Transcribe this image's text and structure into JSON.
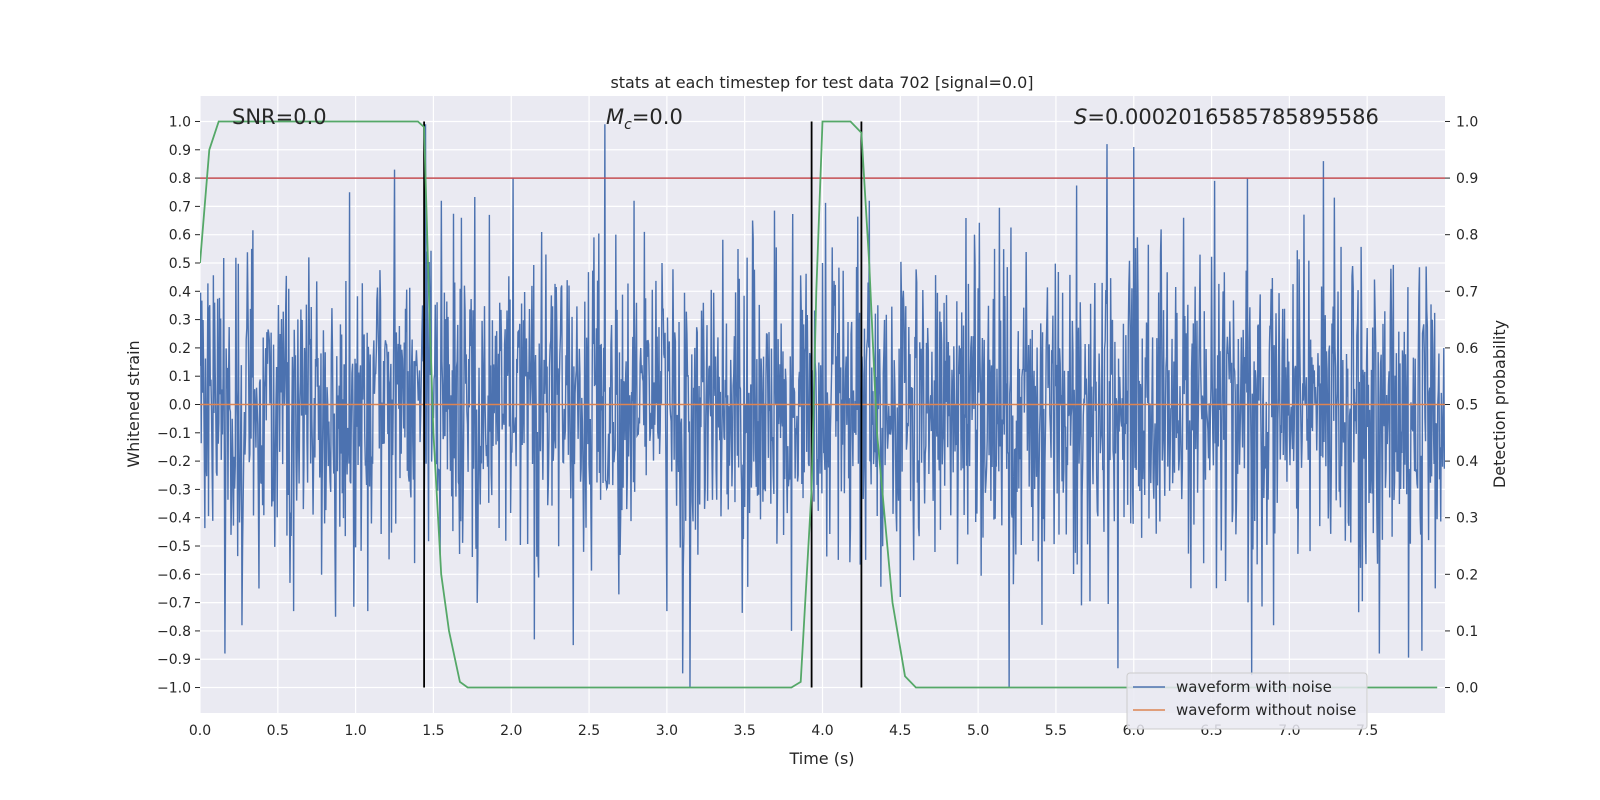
{
  "chart_data": {
    "type": "line",
    "title": "stats at each timestep for test data 702 [signal=0.0]",
    "xlabel": "Time (s)",
    "ylabel": "Whitened strain",
    "y2label": "Detection probability",
    "xlim": [
      0.0,
      8.0
    ],
    "ylim": [
      -1.09,
      1.09
    ],
    "y2lim": [
      -0.045,
      1.045
    ],
    "xticks": [
      "0.0",
      "0.5",
      "1.0",
      "1.5",
      "2.0",
      "2.5",
      "3.0",
      "3.5",
      "4.0",
      "4.5",
      "5.0",
      "5.5",
      "6.0",
      "6.5",
      "7.0",
      "7.5"
    ],
    "yticks": [
      "1.0",
      "0.9",
      "0.8",
      "0.7",
      "0.6",
      "0.5",
      "0.4",
      "0.3",
      "0.2",
      "0.1",
      "0.0",
      "-0.1",
      "-0.2",
      "-0.3",
      "-0.4",
      "-0.5",
      "-0.6",
      "-0.7",
      "-0.8",
      "-0.9",
      "-1.0"
    ],
    "y2ticks": [
      "1.0",
      "0.9",
      "0.8",
      "0.7",
      "0.6",
      "0.5",
      "0.4",
      "0.3",
      "0.2",
      "0.1",
      "0.0"
    ],
    "grid": true,
    "legend": "lower right",
    "annotations": {
      "snr": "SNR=0.0",
      "mc": "=0.0",
      "mc_symbol": "M",
      "mc_sub": "c",
      "s": "=0.0002016585785895586",
      "s_symbol": "S"
    },
    "threshold": {
      "y2": 0.9,
      "color": "#c44e52"
    },
    "detection_boundaries": [
      1.44,
      3.93,
      4.25
    ],
    "series": [
      {
        "name": "waveform with noise",
        "color": "#4c72b0",
        "sample_rate": 256,
        "duration": 8.0,
        "noise_sigma": 0.27,
        "spikes": [
          [
            0.16,
            -0.88
          ],
          [
            0.27,
            -0.78
          ],
          [
            0.38,
            -0.65
          ],
          [
            0.6,
            -0.73
          ],
          [
            0.87,
            -0.75
          ],
          [
            0.96,
            0.75
          ],
          [
            1.08,
            -0.73
          ],
          [
            1.25,
            0.83
          ],
          [
            1.43,
            0.35
          ],
          [
            1.45,
            0.99
          ],
          [
            1.55,
            0.72
          ],
          [
            1.68,
            0.66
          ],
          [
            1.86,
            0.67
          ],
          [
            2.01,
            0.8
          ],
          [
            2.15,
            -0.83
          ],
          [
            2.4,
            -0.85
          ],
          [
            2.6,
            0.99
          ],
          [
            2.67,
            0.6
          ],
          [
            2.79,
            0.72
          ],
          [
            3.0,
            -0.73
          ],
          [
            3.1,
            -0.95
          ],
          [
            3.15,
            -1.0
          ],
          [
            3.55,
            0.65
          ],
          [
            3.8,
            -0.8
          ],
          [
            4.0,
            0.5
          ],
          [
            4.3,
            0.72
          ],
          [
            4.5,
            -0.68
          ],
          [
            5.2,
            -1.0
          ],
          [
            5.83,
            0.92
          ],
          [
            6.0,
            0.91
          ],
          [
            6.32,
            0.66
          ],
          [
            6.52,
            0.79
          ],
          [
            6.73,
            0.8
          ],
          [
            6.9,
            -0.78
          ],
          [
            7.22,
            0.86
          ],
          [
            7.58,
            -0.88
          ],
          [
            7.85,
            -0.87
          ]
        ]
      },
      {
        "name": "waveform without noise",
        "color": "#dd8452",
        "x": [
          0.0,
          8.0
        ],
        "y": [
          0.0,
          0.0
        ]
      },
      {
        "name": "detection probability",
        "color": "#55a868",
        "axis": "y2",
        "x": [
          0.0,
          0.06,
          0.12,
          0.2,
          0.4,
          1.4,
          1.44,
          1.47,
          1.5,
          1.55,
          1.6,
          1.67,
          1.72,
          3.8,
          3.86,
          3.93,
          3.96,
          4.0,
          4.06,
          4.18,
          4.25,
          4.3,
          4.35,
          4.45,
          4.53,
          4.6,
          7.95
        ],
        "y": [
          0.75,
          0.95,
          1.0,
          1.0,
          1.0,
          1.0,
          0.99,
          0.7,
          0.45,
          0.2,
          0.1,
          0.01,
          0.0,
          0.0,
          0.01,
          0.35,
          0.7,
          1.0,
          1.0,
          1.0,
          0.98,
          0.75,
          0.45,
          0.15,
          0.02,
          0.0,
          0.0
        ]
      }
    ]
  }
}
